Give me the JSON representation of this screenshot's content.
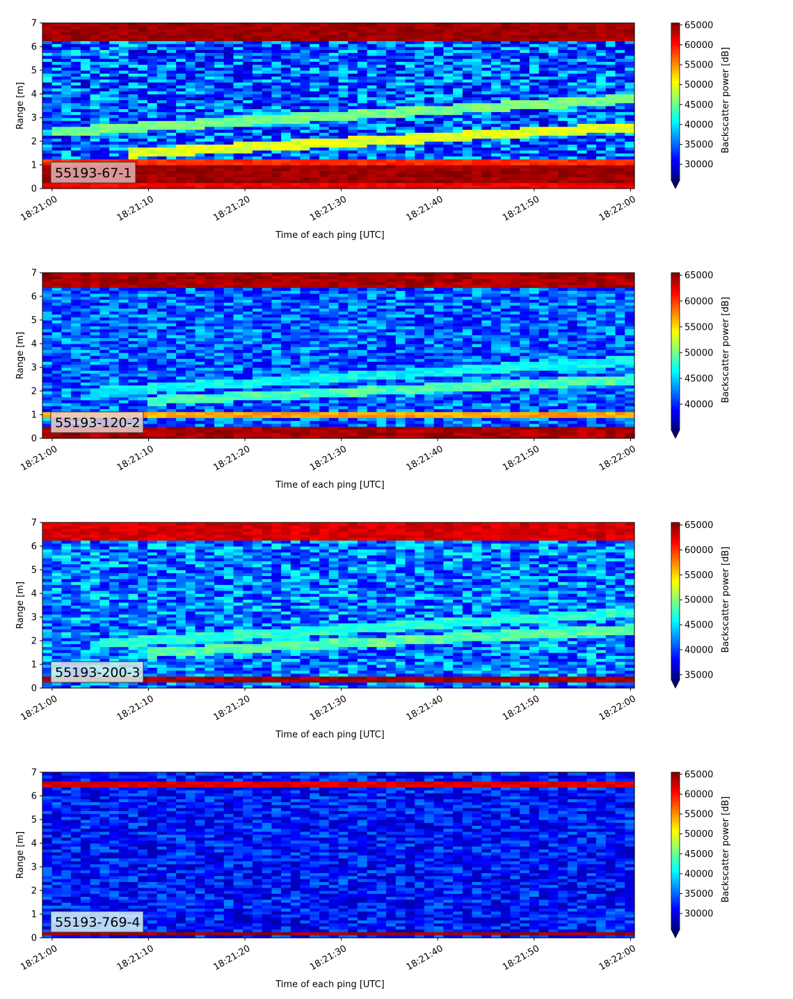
{
  "chart_data": [
    {
      "type": "heatmap",
      "label": "55193-67-1",
      "xlabel": "Time of each ping [UTC]",
      "ylabel": "Range [m]",
      "colorbar_label": "Backscatter power [dB]",
      "colormap": "jet",
      "label_box_color": "#e3b0b0",
      "ylim": [
        0,
        7
      ],
      "yticks": [
        "0",
        "1",
        "2",
        "3",
        "4",
        "5",
        "6",
        "7"
      ],
      "xticks": [
        "18:21:00",
        "18:21:10",
        "18:21:20",
        "18:21:30",
        "18:21:40",
        "18:21:50",
        "18:22:00"
      ],
      "clim": [
        26000,
        65500
      ],
      "cticks": [
        "30000",
        "35000",
        "40000",
        "45000",
        "50000",
        "55000",
        "60000",
        "65000"
      ],
      "cticks_values": [
        30000,
        35000,
        40000,
        45000,
        50000,
        55000,
        60000,
        65000
      ],
      "bands": [
        {
          "y0": 0.0,
          "y1": 0.25,
          "value": 62000
        },
        {
          "y0": 0.25,
          "y1": 1.0,
          "value": 65500
        },
        {
          "y0": 1.0,
          "y1": 1.25,
          "value": 60000
        },
        {
          "y0": 6.25,
          "y1": 7.0,
          "value": 65500
        }
      ],
      "background": {
        "low": 28500,
        "high": 42000
      },
      "streaks": [
        {
          "t0": 0,
          "y0": 2.4,
          "t1": 60,
          "y1": 3.8,
          "value": 47000
        },
        {
          "t0": 8,
          "y0": 1.5,
          "t1": 60,
          "y1": 2.6,
          "value": 51000
        }
      ]
    },
    {
      "type": "heatmap",
      "label": "55193-120-2",
      "xlabel": "Time of each ping [UTC]",
      "ylabel": "Range [m]",
      "colorbar_label": "Backscatter power [dB]",
      "colormap": "jet",
      "label_box_color": "#ead0cc",
      "ylim": [
        0,
        7
      ],
      "yticks": [
        "0",
        "1",
        "2",
        "3",
        "4",
        "5",
        "6",
        "7"
      ],
      "xticks": [
        "18:21:00",
        "18:21:10",
        "18:21:20",
        "18:21:30",
        "18:21:40",
        "18:21:50",
        "18:22:00"
      ],
      "clim": [
        35000,
        65500
      ],
      "cticks": [
        "40000",
        "45000",
        "50000",
        "55000",
        "60000",
        "65000"
      ],
      "cticks_values": [
        40000,
        45000,
        50000,
        55000,
        60000,
        65000
      ],
      "bands": [
        {
          "y0": 0.0,
          "y1": 0.5,
          "value": 65500
        },
        {
          "y0": 0.85,
          "y1": 1.1,
          "value": 58000
        },
        {
          "y0": 6.4,
          "y1": 7.0,
          "value": 65500
        }
      ],
      "background": {
        "low": 38000,
        "high": 46000
      },
      "streaks": [
        {
          "t0": 5,
          "y0": 2.0,
          "t1": 60,
          "y1": 3.3,
          "value": 48000
        },
        {
          "t0": 10,
          "y0": 1.6,
          "t1": 60,
          "y1": 2.5,
          "value": 50000
        }
      ]
    },
    {
      "type": "heatmap",
      "label": "55193-200-3",
      "xlabel": "Time of each ping [UTC]",
      "ylabel": "Range [m]",
      "colorbar_label": "Backscatter power [dB]",
      "colormap": "jet",
      "label_box_color": "#d8f0ec",
      "ylim": [
        0,
        7
      ],
      "yticks": [
        "0",
        "1",
        "2",
        "3",
        "4",
        "5",
        "6",
        "7"
      ],
      "xticks": [
        "18:21:00",
        "18:21:10",
        "18:21:20",
        "18:21:30",
        "18:21:40",
        "18:21:50",
        "18:22:00"
      ],
      "clim": [
        34000,
        65500
      ],
      "cticks": [
        "35000",
        "40000",
        "45000",
        "50000",
        "55000",
        "60000",
        "65000"
      ],
      "cticks_values": [
        35000,
        40000,
        45000,
        50000,
        55000,
        60000,
        65000
      ],
      "bands": [
        {
          "y0": 0.2,
          "y1": 0.5,
          "value": 65500
        },
        {
          "y0": 6.3,
          "y1": 7.0,
          "value": 64000
        }
      ],
      "background": {
        "low": 37500,
        "high": 47000
      },
      "streaks": [
        {
          "t0": 5,
          "y0": 1.9,
          "t1": 60,
          "y1": 3.2,
          "value": 48500
        },
        {
          "t0": 10,
          "y0": 1.5,
          "t1": 60,
          "y1": 2.5,
          "value": 50000
        }
      ]
    },
    {
      "type": "heatmap",
      "label": "55193-769-4",
      "xlabel": "Time of each ping [UTC]",
      "ylabel": "Range [m]",
      "colorbar_label": "Backscatter power [dB]",
      "colormap": "jet",
      "label_box_color": "#d6f2f8",
      "ylim": [
        0,
        7
      ],
      "yticks": [
        "0",
        "1",
        "2",
        "3",
        "4",
        "5",
        "6",
        "7"
      ],
      "xticks": [
        "18:21:00",
        "18:21:10",
        "18:21:20",
        "18:21:30",
        "18:21:40",
        "18:21:50",
        "18:22:00"
      ],
      "clim": [
        26000,
        65500
      ],
      "cticks": [
        "30000",
        "35000",
        "40000",
        "45000",
        "50000",
        "55000",
        "60000",
        "65000"
      ],
      "cticks_values": [
        30000,
        35000,
        40000,
        45000,
        50000,
        55000,
        60000,
        65000
      ],
      "bands": [
        {
          "y0": 0.1,
          "y1": 0.3,
          "value": 65500
        },
        {
          "y0": 6.4,
          "y1": 6.6,
          "value": 63000
        }
      ],
      "background": {
        "low": 28000,
        "high": 36000
      },
      "streaks": []
    }
  ]
}
